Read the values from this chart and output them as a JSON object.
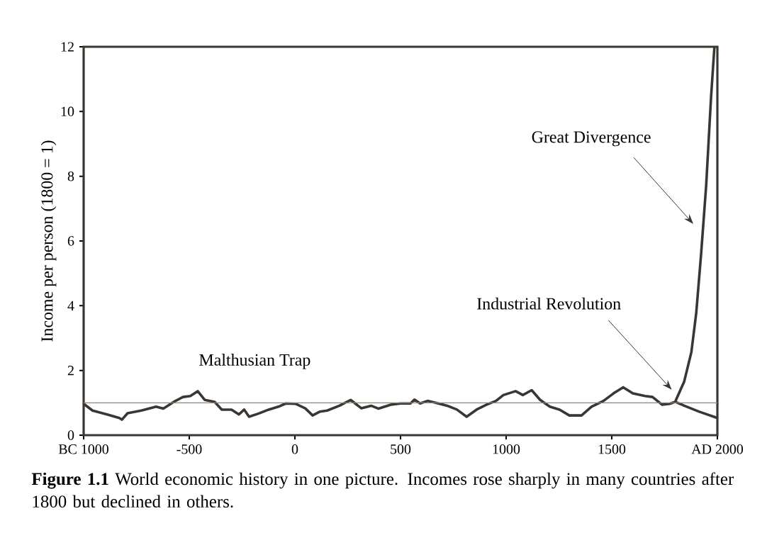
{
  "chart_data": {
    "type": "line",
    "ylabel": "Income per person (1800 = 1)",
    "xlim": [
      -1000,
      2000
    ],
    "xticks": [
      {
        "value": -1000,
        "label": "BC 1000"
      },
      -500,
      0,
      500,
      1000,
      1500,
      {
        "value": 2000,
        "label": "AD 2000"
      }
    ],
    "ylim": [
      0,
      12
    ],
    "yticks": [
      0,
      2,
      4,
      6,
      8,
      10,
      12
    ],
    "grid": false,
    "line_style": "solid",
    "marker": "none",
    "series": [
      {
        "color": "#3b3631",
        "x": [
          -1000,
          -958,
          -889,
          -831,
          -819,
          -792,
          -727,
          -657,
          -623,
          -565,
          -530,
          -495,
          -460,
          -427,
          -380,
          -346,
          -300,
          -265,
          -240,
          -217,
          -171,
          -124,
          -78,
          -43,
          3,
          49,
          84,
          119,
          153,
          211,
          264,
          315,
          361,
          396,
          454,
          501,
          547,
          566,
          593,
          628,
          686,
          721,
          767,
          813,
          860,
          906,
          952,
          987,
          1045,
          1079,
          1121,
          1161,
          1207,
          1253,
          1299,
          1357,
          1404,
          1461,
          1508,
          1554,
          1600,
          1658,
          1693,
          1739,
          1774,
          1800,
          1843,
          1877,
          1900,
          1923,
          1947,
          1970,
          1986
        ],
        "values": [
          0.97,
          0.76,
          0.64,
          0.53,
          0.48,
          0.68,
          0.76,
          0.88,
          0.82,
          1.06,
          1.18,
          1.21,
          1.36,
          1.09,
          1.03,
          0.79,
          0.79,
          0.64,
          0.79,
          0.57,
          0.67,
          0.79,
          0.88,
          0.98,
          0.97,
          0.83,
          0.61,
          0.73,
          0.76,
          0.91,
          1.09,
          0.83,
          0.91,
          0.82,
          0.94,
          0.98,
          0.98,
          1.1,
          0.98,
          1.06,
          0.97,
          0.91,
          0.79,
          0.57,
          0.79,
          0.94,
          1.06,
          1.24,
          1.36,
          1.24,
          1.39,
          1.09,
          0.88,
          0.79,
          0.61,
          0.61,
          0.88,
          1.06,
          1.29,
          1.48,
          1.29,
          1.21,
          1.18,
          0.94,
          0.97,
          1.03,
          1.66,
          2.57,
          3.78,
          5.6,
          7.72,
          10.44,
          12
        ]
      },
      {
        "color": "#3b3631",
        "x": [
          1800,
          1843,
          1912,
          2000
        ],
        "values": [
          1.03,
          0.91,
          0.73,
          0.53
        ]
      }
    ],
    "ref_lines": [
      {
        "axis": "y",
        "value": 1,
        "color": "#8a8580"
      }
    ],
    "annotations": [
      "Malthusian Trap",
      "Industrial Revolution",
      "Great Divergence",
      "**Figure 1.1** World economic history in one picture. Incomes rose sharply in many countries after 1800 but declined in others."
    ]
  }
}
